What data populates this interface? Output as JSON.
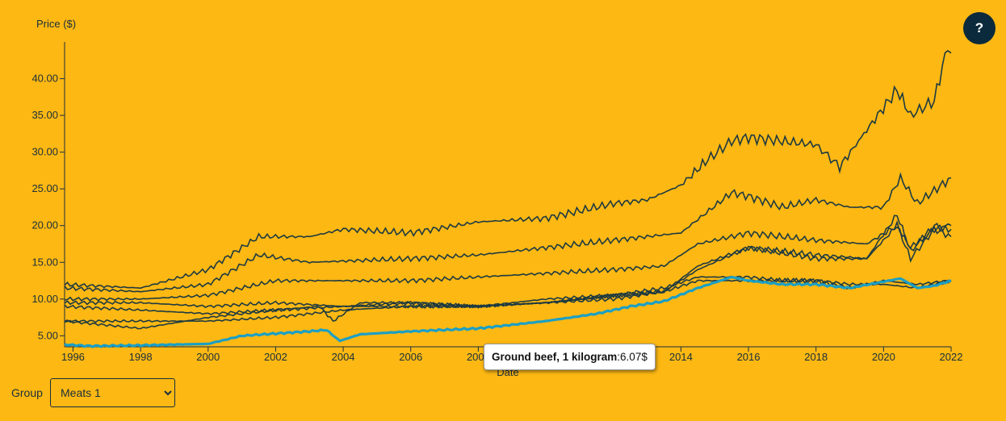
{
  "chart_data": {
    "type": "line",
    "ylabel": "Price ($)",
    "xlabel": "Date",
    "xlim": [
      1995.75,
      2022.0
    ],
    "ylim": [
      3.5,
      45
    ],
    "x_ticks": [
      "1996",
      "1998",
      "2000",
      "2002",
      "2004",
      "2006",
      "2008",
      "2010",
      "2012",
      "2014",
      "2016",
      "2018",
      "2020",
      "2022"
    ],
    "y_ticks": [
      "5.00",
      "10.00",
      "15.00",
      "20.00",
      "25.00",
      "30.00",
      "35.00",
      "40.00"
    ],
    "line_color": "#1e3a40",
    "highlight_color": "#1b9fc4",
    "highlighted_series": "Ground beef, 1 kilogram",
    "series": [
      {
        "name": "",
        "x": [
          1995.75,
          1998,
          2000,
          2001.5,
          2003,
          2004,
          2006,
          2008,
          2010,
          2012,
          2013,
          2014,
          2014.8,
          2015.5,
          2016,
          2017,
          2018,
          2018.7,
          2019.5,
          2020.4,
          2020.8,
          2021.5,
          2021.9,
          2022
        ],
        "values": [
          12.0,
          11.5,
          14.0,
          18.5,
          18.5,
          19.5,
          19.0,
          20.5,
          21.0,
          23.0,
          23.5,
          25.5,
          29.0,
          31.5,
          32.0,
          31.5,
          31.0,
          28.0,
          33.0,
          38.5,
          35.0,
          37.0,
          44.5,
          43.5
        ]
      },
      {
        "name": "",
        "x": [
          1995.75,
          1998,
          2000,
          2001.5,
          2003,
          2006,
          2008,
          2010,
          2012,
          2014,
          2015.5,
          2016,
          2017,
          2018,
          2019,
          2020,
          2020.5,
          2021,
          2022
        ],
        "values": [
          11.5,
          11.0,
          12.0,
          16.0,
          15.0,
          15.5,
          16.0,
          17.0,
          18.0,
          19.0,
          24.5,
          24.0,
          22.5,
          23.5,
          22.5,
          22.5,
          26.5,
          23.0,
          26.5
        ]
      },
      {
        "name": "",
        "x": [
          1995.75,
          1998,
          2000,
          2002,
          2004,
          2006,
          2008,
          2010,
          2012,
          2013.5,
          2014.5,
          2016,
          2018,
          2019.5,
          2020.4,
          2020.8,
          2021.5,
          2022
        ],
        "values": [
          10.0,
          10.0,
          10.5,
          12.5,
          12.5,
          12.5,
          13.0,
          13.5,
          14.0,
          14.5,
          17.5,
          19.0,
          18.0,
          17.5,
          20.0,
          17.0,
          19.5,
          20.0
        ]
      },
      {
        "name": "",
        "x": [
          1995.75,
          1998,
          2000,
          2002,
          2004,
          2006,
          2008,
          2010,
          2012,
          2013.5,
          2014.5,
          2016,
          2018,
          2019.5,
          2020.4,
          2020.8,
          2021.5,
          2022
        ],
        "values": [
          9.5,
          9.5,
          9.0,
          9.5,
          9.0,
          9.5,
          9.0,
          9.5,
          10.0,
          11.0,
          14.5,
          17.0,
          16.0,
          15.5,
          21.5,
          16.5,
          20.0,
          19.5
        ]
      },
      {
        "name": "",
        "x": [
          1995.75,
          1998,
          2000,
          2002,
          2003.3,
          2003.7,
          2004.5,
          2006,
          2008,
          2010,
          2012,
          2013.5,
          2014.5,
          2016,
          2018,
          2019.5,
          2020.4,
          2020.8,
          2021.5,
          2022
        ],
        "values": [
          9.0,
          8.5,
          8.0,
          8.5,
          9.0,
          7.0,
          9.5,
          9.5,
          9.0,
          10.0,
          10.5,
          11.0,
          14.0,
          17.0,
          15.5,
          15.5,
          20.0,
          15.5,
          19.5,
          18.5
        ]
      },
      {
        "name": "",
        "x": [
          1995.75,
          1998,
          2000,
          2002,
          2004,
          2006,
          2008,
          2010,
          2012,
          2013.5,
          2014.5,
          2016,
          2017,
          2018,
          2019,
          2020,
          2021,
          2022
        ],
        "values": [
          7.0,
          6.0,
          7.5,
          8.5,
          9.0,
          9.0,
          9.0,
          9.5,
          10.5,
          11.5,
          13.0,
          13.0,
          12.5,
          12.5,
          12.0,
          12.0,
          11.5,
          12.5
        ]
      },
      {
        "name": "",
        "x": [
          1995.75,
          1998,
          2000,
          2002,
          2004,
          2006,
          2008,
          2010,
          2012,
          2013.5,
          2014.5,
          2016,
          2017,
          2018,
          2019,
          2020,
          2021,
          2022
        ],
        "values": [
          7.0,
          7.0,
          7.0,
          7.5,
          8.5,
          9.0,
          9.0,
          9.5,
          10.5,
          11.0,
          12.5,
          12.5,
          12.5,
          12.5,
          11.5,
          12.5,
          12.0,
          12.5
        ]
      },
      {
        "name": "Ground beef, 1 kilogram",
        "highlight": true,
        "x": [
          1995.75,
          1996.5,
          1998,
          2000,
          2001,
          2002,
          2003,
          2003.5,
          2003.9,
          2004.5,
          2006,
          2008,
          2010,
          2011.5,
          2012.5,
          2013.5,
          2014.5,
          2015.5,
          2016,
          2017,
          2018,
          2019,
          2020.5,
          2021,
          2021.5,
          2022
        ],
        "values": [
          3.8,
          3.6,
          3.7,
          3.9,
          5.0,
          5.3,
          5.6,
          5.8,
          4.3,
          5.2,
          5.6,
          6.0,
          7.0,
          8.0,
          9.0,
          9.7,
          11.5,
          13.0,
          12.5,
          12.0,
          12.0,
          11.5,
          12.8,
          11.5,
          11.8,
          12.5
        ]
      }
    ]
  },
  "tooltip": {
    "label": "Ground beef, 1 kilogram",
    "value": "6.07$"
  },
  "help": {
    "label": "?"
  },
  "controls": {
    "group_label": "Group",
    "group_selected": "Meats 1"
  }
}
